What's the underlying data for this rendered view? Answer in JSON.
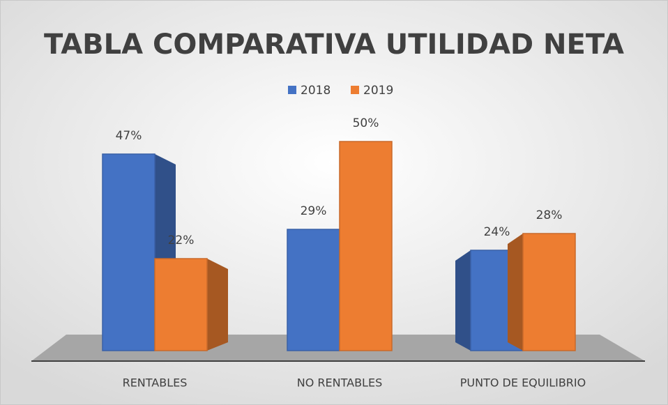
{
  "chart_data": {
    "type": "bar",
    "title": "TABLA COMPARATIVA UTILIDAD NETA",
    "categories": [
      "RENTABLES",
      "NO RENTABLES",
      "PUNTO DE EQUILIBRIO"
    ],
    "series": [
      {
        "name": "2018",
        "color": "#4472c4",
        "values": [
          47,
          29,
          24
        ],
        "value_labels": [
          "47%",
          "29%",
          "24%"
        ]
      },
      {
        "name": "2019",
        "color": "#ed7d31",
        "values": [
          22,
          50,
          28
        ],
        "value_labels": [
          "22%",
          "50%",
          "28%"
        ]
      }
    ],
    "legend": "top"
  }
}
